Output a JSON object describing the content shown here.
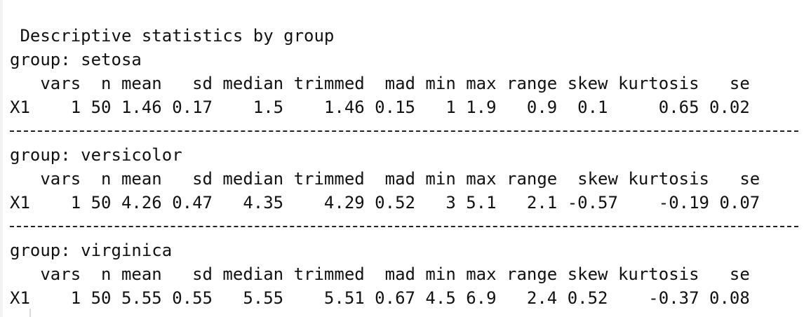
{
  "title": " Descriptive statistics by group",
  "groups": [
    {
      "group_line": "group: setosa",
      "header_line": "   vars  n mean   sd median trimmed  mad min max range skew kurtosis   se",
      "row_line": "X1    1 50 1.46 0.17    1.5    1.46 0.15   1 1.9   0.9  0.1     0.65 0.02",
      "row": {
        "label": "X1",
        "vars": 1,
        "n": 50,
        "mean": 1.46,
        "sd": 0.17,
        "median": 1.5,
        "trimmed": 1.46,
        "mad": 0.15,
        "min": 1,
        "max": 1.9,
        "range": 0.9,
        "skew": 0.1,
        "kurtosis": 0.65,
        "se": 0.02
      }
    },
    {
      "group_line": "group: versicolor",
      "header_line": "   vars  n mean   sd median trimmed  mad min max range  skew kurtosis   se",
      "row_line": "X1    1 50 4.26 0.47   4.35    4.29 0.52   3 5.1   2.1 -0.57    -0.19 0.07",
      "row": {
        "label": "X1",
        "vars": 1,
        "n": 50,
        "mean": 4.26,
        "sd": 0.47,
        "median": 4.35,
        "trimmed": 4.29,
        "mad": 0.52,
        "min": 3,
        "max": 5.1,
        "range": 2.1,
        "skew": -0.57,
        "kurtosis": -0.19,
        "se": 0.07
      }
    },
    {
      "group_line": "group: virginica",
      "header_line": "   vars  n mean   sd median trimmed  mad min max range skew kurtosis   se",
      "row_line": "X1    1 50 5.55 0.55   5.55    5.51 0.67 4.5 6.9   2.4 0.52    -0.37 0.08",
      "row": {
        "label": "X1",
        "vars": 1,
        "n": 50,
        "mean": 5.55,
        "sd": 0.55,
        "median": 5.55,
        "trimmed": 5.51,
        "mad": 0.67,
        "min": 4.5,
        "max": 6.9,
        "range": 2.4,
        "skew": 0.52,
        "kurtosis": -0.37,
        "se": 0.08
      }
    }
  ]
}
